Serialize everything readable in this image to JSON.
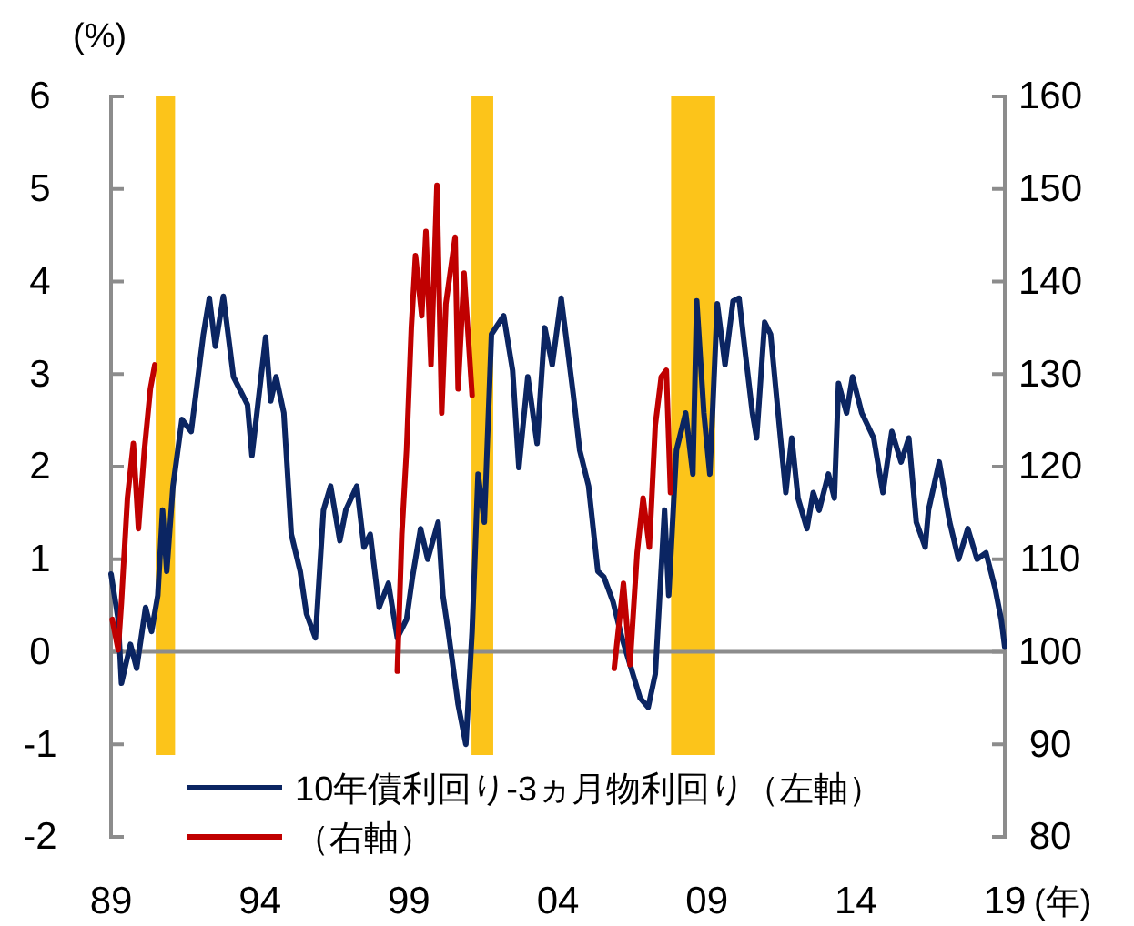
{
  "chart_data": {
    "type": "line",
    "ylabel": "(%)",
    "xlabel": "(年)",
    "xlim": [
      1989,
      2019
    ],
    "xticks": [
      {
        "value": 1989,
        "label": "89"
      },
      {
        "value": 1994,
        "label": "94"
      },
      {
        "value": 1999,
        "label": "99"
      },
      {
        "value": 2004,
        "label": "04"
      },
      {
        "value": 2009,
        "label": "09"
      },
      {
        "value": 2014,
        "label": "14"
      },
      {
        "value": 2019,
        "label": "19"
      }
    ],
    "ylim": [
      -2,
      6
    ],
    "yticks": [
      -2,
      -1,
      0,
      1,
      2,
      3,
      4,
      5,
      6
    ],
    "y2lim": [
      80,
      160
    ],
    "y2ticks": [
      80,
      90,
      100,
      110,
      120,
      130,
      140,
      150,
      160
    ],
    "legend": "bottom left",
    "grid": false,
    "ref_lines": [
      {
        "axis": "y",
        "value": 0,
        "color": "#8c8c8c"
      }
    ],
    "bands": [
      {
        "axis": "x",
        "from": 1990.5,
        "to": 1991.15,
        "color": "#fcc41a"
      },
      {
        "axis": "x",
        "from": 2001.1,
        "to": 2001.83,
        "color": "#fcc41a"
      },
      {
        "axis": "x",
        "from": 2007.8,
        "to": 2009.28,
        "color": "#fcc41a"
      }
    ],
    "series": [
      {
        "name": "10年債利回り-3ヵ月物利回り（左軸）",
        "color": "#0b2562",
        "x": [
          1989.0,
          1989.24,
          1989.35,
          1989.65,
          1989.86,
          1990.16,
          1990.36,
          1990.57,
          1990.73,
          1990.87,
          1991.08,
          1991.38,
          1991.69,
          1992.1,
          1992.3,
          1992.5,
          1992.77,
          1993.11,
          1993.58,
          1993.73,
          1994.19,
          1994.36,
          1994.54,
          1994.8,
          1995.05,
          1995.35,
          1995.56,
          1995.86,
          1996.13,
          1996.37,
          1996.68,
          1996.88,
          1997.25,
          1997.49,
          1997.7,
          1998.0,
          1998.31,
          1998.61,
          1998.92,
          1999.12,
          1999.39,
          1999.63,
          1999.98,
          2000.14,
          2000.35,
          2000.65,
          2000.91,
          2001.12,
          2001.32,
          2001.53,
          2001.77,
          2002.18,
          2002.48,
          2002.69,
          2002.99,
          2003.3,
          2003.56,
          2003.81,
          2004.11,
          2004.52,
          2004.73,
          2005.03,
          2005.34,
          2005.54,
          2005.85,
          2006.15,
          2006.46,
          2006.76,
          2007.03,
          2007.27,
          2007.58,
          2007.72,
          2007.98,
          2008.29,
          2008.53,
          2008.66,
          2008.9,
          2009.1,
          2009.35,
          2009.61,
          2009.88,
          2010.08,
          2010.29,
          2010.53,
          2010.67,
          2010.94,
          2011.14,
          2011.45,
          2011.65,
          2011.85,
          2012.06,
          2012.36,
          2012.57,
          2012.77,
          2013.08,
          2013.28,
          2013.42,
          2013.69,
          2013.89,
          2014.2,
          2014.6,
          2014.91,
          2015.21,
          2015.52,
          2015.78,
          2016.03,
          2016.33,
          2016.44,
          2016.8,
          2017.15,
          2017.45,
          2017.76,
          2018.07,
          2018.37,
          2018.68,
          2018.88,
          2019.0
        ],
        "values": [
          0.84,
          0.35,
          -0.34,
          0.08,
          -0.18,
          0.48,
          0.22,
          0.61,
          1.53,
          0.87,
          1.79,
          2.51,
          2.38,
          3.43,
          3.82,
          3.3,
          3.84,
          2.97,
          2.67,
          2.12,
          3.4,
          2.71,
          2.97,
          2.58,
          1.27,
          0.87,
          0.41,
          0.15,
          1.53,
          1.79,
          1.2,
          1.53,
          1.79,
          1.13,
          1.27,
          0.48,
          0.74,
          0.15,
          0.35,
          0.81,
          1.33,
          1.0,
          1.4,
          0.61,
          0.15,
          -0.57,
          -1.0,
          0.22,
          1.92,
          1.4,
          3.43,
          3.63,
          3.04,
          1.99,
          2.97,
          2.25,
          3.5,
          3.1,
          3.82,
          2.77,
          2.18,
          1.79,
          0.87,
          0.81,
          0.54,
          0.15,
          -0.18,
          -0.5,
          -0.6,
          -0.24,
          1.53,
          0.61,
          2.18,
          2.58,
          1.92,
          3.79,
          2.58,
          1.92,
          3.76,
          3.1,
          3.79,
          3.82,
          3.23,
          2.58,
          2.31,
          3.56,
          3.43,
          2.38,
          1.72,
          2.31,
          1.66,
          1.33,
          1.72,
          1.53,
          1.92,
          1.66,
          2.9,
          2.58,
          2.97,
          2.58,
          2.31,
          1.72,
          2.38,
          2.05,
          2.31,
          1.4,
          1.13,
          1.53,
          2.05,
          1.4,
          1.0,
          1.33,
          1.0,
          1.07,
          0.68,
          0.35,
          0.05
        ]
      },
      {
        "name": "（右軸）",
        "color": "#c00000",
        "axis": "y2",
        "x": [
          1989.04,
          1989.24,
          1989.35,
          1989.55,
          1989.75,
          1989.92,
          1990.12,
          1990.32,
          1990.47,
          1994.0,
          1998.61,
          1998.76,
          1998.92,
          1999.08,
          1999.22,
          1999.43,
          1999.57,
          1999.74,
          1999.94,
          2000.1,
          2000.24,
          2000.55,
          2000.65,
          2000.85,
          2001.12,
          2004.0,
          2005.89,
          2006.2,
          2006.42,
          2006.66,
          2006.86,
          2007.07,
          2007.27,
          2007.47,
          2007.64,
          2007.78
        ],
        "values": [
          103.5,
          100.2,
          105.4,
          116.6,
          122.5,
          113.3,
          121.8,
          128.4,
          131.0,
          null,
          97.9,
          112.7,
          121.8,
          135.0,
          142.8,
          136.3,
          145.4,
          131.0,
          150.4,
          125.8,
          137.6,
          144.8,
          128.4,
          140.9,
          127.7,
          null,
          98.2,
          107.4,
          98.6,
          110.7,
          116.6,
          111.3,
          124.5,
          129.7,
          130.4,
          117.2
        ]
      }
    ]
  }
}
